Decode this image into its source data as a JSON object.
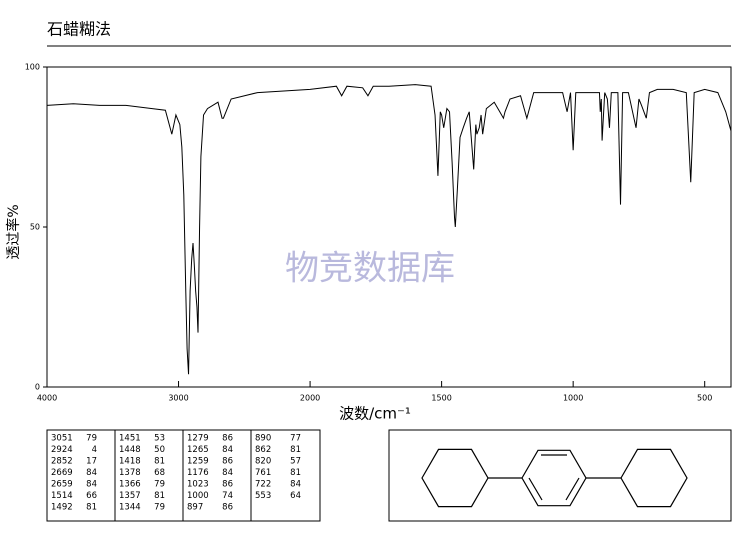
{
  "chart_data": {
    "type": "line",
    "title": "石蜡糊法",
    "xlabel": "波数/cm⁻¹",
    "ylabel": "透过率%",
    "watermark": "物竞数据库",
    "xlim": [
      4000,
      400
    ],
    "xticks": [
      4000,
      3000,
      2000,
      1500,
      1000,
      500
    ],
    "ylim": [
      0,
      100
    ],
    "yticks": [
      0,
      50,
      100
    ],
    "series": [
      {
        "color": "#000000",
        "x": [
          4000,
          3800,
          3600,
          3400,
          3300,
          3200,
          3100,
          3051,
          3020,
          2990,
          2975,
          2960,
          2945,
          2935,
          2924,
          2912,
          2900,
          2890,
          2880,
          2870,
          2860,
          2852,
          2840,
          2830,
          2810,
          2780,
          2700,
          2669,
          2659,
          2600,
          2400,
          2200,
          2000,
          1900,
          1880,
          1860,
          1800,
          1780,
          1760,
          1700,
          1600,
          1540,
          1525,
          1514,
          1505,
          1500,
          1492,
          1480,
          1470,
          1460,
          1451,
          1448,
          1440,
          1430,
          1418,
          1405,
          1395,
          1378,
          1370,
          1366,
          1357,
          1350,
          1344,
          1330,
          1300,
          1279,
          1265,
          1259,
          1240,
          1200,
          1176,
          1150,
          1100,
          1040,
          1023,
          1010,
          1000,
          990,
          950,
          900,
          897,
          893,
          890,
          880,
          870,
          862,
          855,
          830,
          820,
          812,
          790,
          761,
          750,
          740,
          722,
          710,
          680,
          620,
          570,
          553,
          540,
          500,
          450,
          420,
          400
        ],
        "values": [
          88,
          88.5,
          88,
          88,
          87.5,
          87,
          86.5,
          79,
          85,
          82,
          75,
          60,
          30,
          12,
          4,
          30,
          40,
          45,
          38,
          30,
          25,
          17,
          50,
          72,
          85,
          87,
          89,
          84,
          84,
          90,
          92,
          92.5,
          93,
          94,
          91,
          94,
          93.5,
          91,
          94,
          94,
          94.5,
          94,
          85,
          66,
          86,
          85,
          81,
          87,
          86,
          70,
          53,
          50,
          62,
          78,
          81,
          84,
          86,
          68,
          82,
          79,
          81,
          85,
          79,
          87,
          89,
          86,
          84,
          86,
          90,
          91,
          84,
          92,
          92,
          92,
          86,
          92,
          74,
          92,
          92,
          92,
          86,
          90,
          77,
          92,
          90,
          81,
          92,
          92,
          57,
          92,
          92,
          81,
          90,
          88,
          84,
          92,
          93,
          93,
          92,
          64,
          92,
          93,
          92,
          86,
          80
        ]
      }
    ],
    "peak_table": [
      [
        [
          3051,
          79
        ],
        [
          2924,
          4
        ],
        [
          2852,
          17
        ],
        [
          2669,
          84
        ],
        [
          2659,
          84
        ],
        [
          1514,
          66
        ],
        [
          1492,
          81
        ]
      ],
      [
        [
          1451,
          53
        ],
        [
          1448,
          50
        ],
        [
          1418,
          81
        ],
        [
          1378,
          68
        ],
        [
          1366,
          79
        ],
        [
          1357,
          81
        ],
        [
          1344,
          79
        ]
      ],
      [
        [
          1279,
          86
        ],
        [
          1265,
          84
        ],
        [
          1259,
          86
        ],
        [
          1176,
          84
        ],
        [
          1023,
          86
        ],
        [
          1000,
          74
        ],
        [
          897,
          86
        ]
      ],
      [
        [
          890,
          77
        ],
        [
          862,
          81
        ],
        [
          820,
          57
        ],
        [
          761,
          81
        ],
        [
          722,
          84
        ],
        [
          553,
          64
        ]
      ]
    ]
  }
}
